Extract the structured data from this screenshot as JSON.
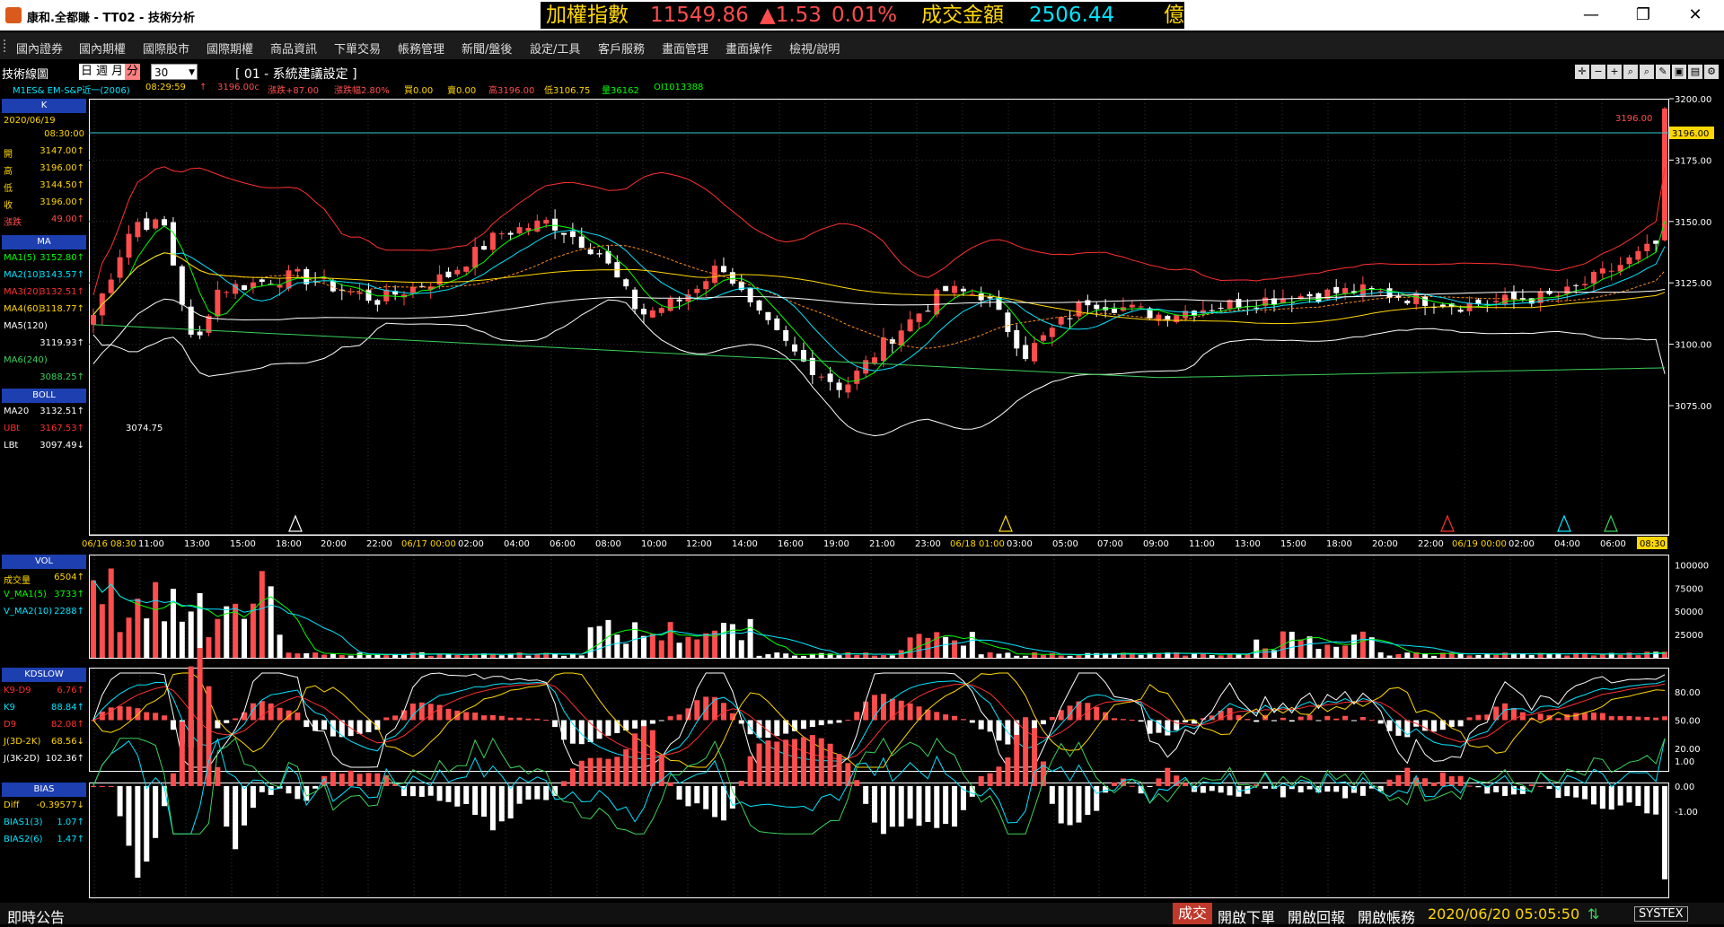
{
  "window": {
    "title": "康和.全都賺 - TT02 - 技術分析",
    "minimize_glyph": "—",
    "maximize_glyph": "❐",
    "close_glyph": "✕"
  },
  "ticker": {
    "index_label": "加權指數",
    "index_value": "11549.86",
    "change": "▲1.53",
    "change_pct": "0.01%",
    "turnover_label": "成交金額",
    "turnover_value": "2506.44",
    "unit": "億"
  },
  "menu": [
    "國內證券",
    "國內期權",
    "國際股市",
    "國際期權",
    "商品資訊",
    "下單交易",
    "帳務管理",
    "新聞/盤後",
    "設定/工具",
    "客戶服務",
    "畫面管理",
    "畫面操作",
    "檢視/說明"
  ],
  "toolbar": {
    "title": "技術線圖",
    "periods": [
      "日",
      "週",
      "月",
      "分"
    ],
    "active_period": "分",
    "interval": "30",
    "setting": "[ 01 - 系統建議設定 ]"
  },
  "quote": {
    "symbol": "M1ES& EM-S&P近一(2006)",
    "time": "08:29:59",
    "arrow": "↑",
    "last": "3196.00c",
    "chg": "漲跌+87.00",
    "chg_pct": "漲跌幅2.80%",
    "bid": "買0.00",
    "ask": "賣0.00",
    "high": "高3196.00",
    "low": "低3106.75",
    "vol": "量36162",
    "oi": "OI1013388"
  },
  "k_panel": {
    "header": "K",
    "date": "2020/06/19",
    "time": "08:30:00",
    "rows": [
      {
        "label": "開",
        "value": "3147.00↑"
      },
      {
        "label": "高",
        "value": "3196.00↑"
      },
      {
        "label": "低",
        "value": "3144.50↑"
      },
      {
        "label": "收",
        "value": "3196.00↑"
      },
      {
        "label": "漲跌",
        "value": "49.00↑"
      }
    ]
  },
  "ma_panel": {
    "header": "MA",
    "rows": [
      {
        "label": "MA1(5)",
        "value": "3152.80↑",
        "color": "#00ff00"
      },
      {
        "label": "MA2(10)",
        "value": "3143.57↑",
        "color": "#00e5ff"
      },
      {
        "label": "MA3(20)",
        "value": "3132.51↑",
        "color": "#ff3030"
      },
      {
        "label": "MA4(60)",
        "value": "3118.77↑",
        "color": "#ffd700"
      },
      {
        "label": "MA5(120)",
        "value": "",
        "color": "#ffffff"
      },
      {
        "label": "",
        "value": "3119.93↑",
        "color": "#ffffff"
      },
      {
        "label": "MA6(240)",
        "value": "",
        "color": "#3cd15b"
      },
      {
        "label": "",
        "value": "3088.25↑",
        "color": "#3cd15b"
      }
    ]
  },
  "boll_panel": {
    "header": "BOLL",
    "rows": [
      {
        "label": "MA20",
        "value": "3132.51↑",
        "color": "#ffffff"
      },
      {
        "label": "UBt",
        "value": "3167.53↑",
        "color": "#ff3030"
      },
      {
        "label": "LBt",
        "value": "3097.49↓",
        "color": "#ffffff"
      }
    ]
  },
  "vol_panel": {
    "header": "VOL",
    "rows": [
      {
        "label": "成交量",
        "value": "6504↑",
        "color": "#ffd700"
      },
      {
        "label": "V_MA1(5)",
        "value": "3733↑",
        "color": "#00ff00"
      },
      {
        "label": "V_MA2(10)",
        "value": "2288↑",
        "color": "#00e5ff"
      }
    ]
  },
  "kd_panel": {
    "header": "KDSLOW",
    "rows": [
      {
        "label": "K9-D9",
        "value": "6.76↑",
        "color": "#ff3030"
      },
      {
        "label": "K9",
        "value": "88.84↑",
        "color": "#00e5ff"
      },
      {
        "label": "D9",
        "value": "82.08↑",
        "color": "#ff3030"
      },
      {
        "label": "J(3D-2K)",
        "value": "68.56↓",
        "color": "#ffd700"
      },
      {
        "label": "J(3K-2D)",
        "value": "102.36↑",
        "color": "#ffffff"
      }
    ]
  },
  "bias_panel": {
    "header": "BIAS",
    "rows": [
      {
        "label": "Diff",
        "value": "-0.39577↓",
        "color": "#ffd700"
      },
      {
        "label": "BIAS1(3)",
        "value": "1.07↑",
        "color": "#00e5ff"
      },
      {
        "label": "BIAS2(6)",
        "value": "1.47↑",
        "color": "#00e5ff"
      }
    ]
  },
  "price_axis": {
    "ticks": [
      "3200.00",
      "3175.00",
      "3150.00",
      "3125.00",
      "3100.00",
      "3075.00"
    ],
    "current": "3196.00",
    "current_tag": "3196.00",
    "low_mark": "3074.75"
  },
  "time_axis": {
    "labels": [
      "06/16 08:30",
      "11:00",
      "13:00",
      "15:00",
      "18:00",
      "20:00",
      "22:00",
      "06/17 00:00",
      "02:00",
      "04:00",
      "06:00",
      "08:00",
      "10:00",
      "12:00",
      "14:00",
      "16:00",
      "19:00",
      "21:00",
      "23:00",
      "06/18 01:00",
      "03:00",
      "05:00",
      "07:00",
      "09:00",
      "11:00",
      "13:00",
      "15:00",
      "18:00",
      "20:00",
      "22:00",
      "06/19 00:00",
      "02:00",
      "04:00",
      "06:00",
      "08:30"
    ]
  },
  "vol_axis": {
    "ticks": [
      "100000",
      "75000",
      "50000",
      "25000"
    ]
  },
  "kd_axis": {
    "ticks": [
      "80.00",
      "50.00",
      "20.00"
    ]
  },
  "bias_axis": {
    "ticks": [
      "1.00",
      "0.00",
      "-1.00"
    ]
  },
  "colors": {
    "up": "#ff4d4d",
    "down": "#ffffff",
    "ma5": "#00ff00",
    "ma10": "#00e5ff",
    "ma20": "#ff3030",
    "ma60": "#ffd700",
    "ma120": "#ffffff",
    "ma240": "#3cd15b",
    "boll_mid": "#ff8c1a",
    "header": "#1d3fb0"
  },
  "status": {
    "bulletin": "即時公告",
    "filled": "成交",
    "open_order": "開啟下單",
    "open_report": "開啟回報",
    "open_account": "開啟帳務",
    "datetime": "2020/06/20 05:05:50",
    "brand": "SYSTEX"
  }
}
